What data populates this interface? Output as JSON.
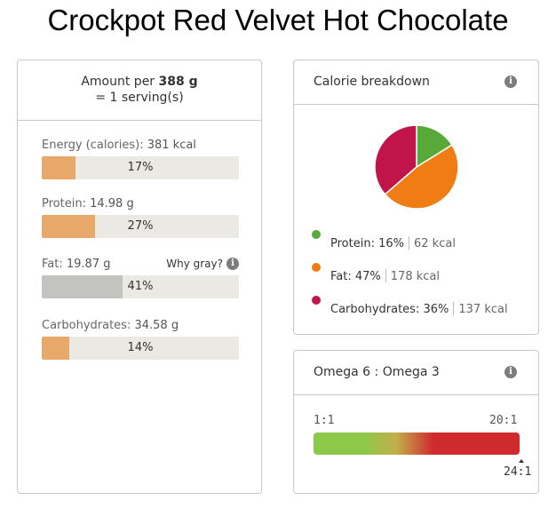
{
  "title": "Crockpot Red Velvet Hot Chocolate",
  "nutrition": {
    "amount_prefix": "Amount per ",
    "amount_value": "388 g",
    "servings": "= 1 serving(s)",
    "rows": [
      {
        "label": "Energy (calories):",
        "value": "381 kcal",
        "percent_text": "17%",
        "percent": 17,
        "color": "#e8a86a"
      },
      {
        "label": "Protein:",
        "value": "14.98 g",
        "percent_text": "27%",
        "percent": 27,
        "color": "#e8a86a"
      },
      {
        "label": "Fat:",
        "value": "19.87 g",
        "percent_text": "41%",
        "percent": 41,
        "color": "#c3c3c0"
      },
      {
        "label": "Carbohydrates:",
        "value": "34.58 g",
        "percent_text": "14%",
        "percent": 14,
        "color": "#e8a86a"
      }
    ],
    "why_gray": "Why gray?"
  },
  "calorie": {
    "title": "Calorie breakdown",
    "info_icon": "i",
    "legend": [
      {
        "label": "Protein:",
        "pct": "16%",
        "kcal": "62 kcal",
        "color": "#58a83a"
      },
      {
        "label": "Fat:",
        "pct": "47%",
        "kcal": "178 kcal",
        "color": "#ef7d14"
      },
      {
        "label": "Carbohydrates:",
        "pct": "36%",
        "kcal": "137 kcal",
        "color": "#c0144a"
      }
    ]
  },
  "omega": {
    "title": "Omega 6 : Omega 3",
    "info_icon": "i",
    "scale_left": "1:1",
    "scale_right": "20:1",
    "value": "24:1"
  },
  "chart_data": {
    "type": "pie",
    "categories": [
      "Protein",
      "Fat",
      "Carbohydrates"
    ],
    "values": [
      16,
      47,
      36
    ],
    "colors": [
      "#58a83a",
      "#ef7d14",
      "#c0144a"
    ],
    "title": ""
  }
}
